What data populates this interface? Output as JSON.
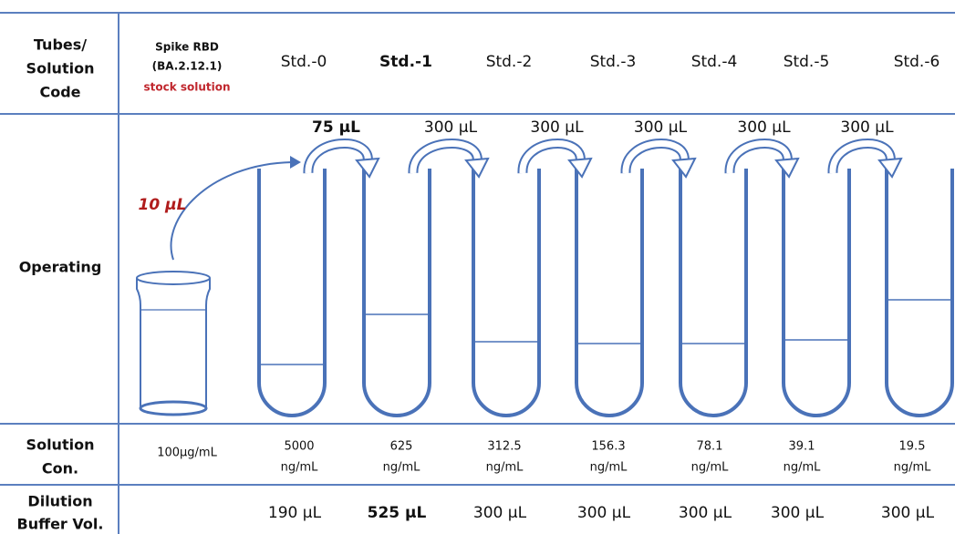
{
  "row_labels": {
    "code": [
      "Tubes/",
      "Solution",
      "Code"
    ],
    "operating": "Operating",
    "concentration": [
      "Solution",
      "Con."
    ],
    "buffer": [
      "Dilution",
      "Buffer Vol."
    ]
  },
  "stock": {
    "name": [
      "Spike RBD",
      "(BA.2.12.1)"
    ],
    "note": "stock solution",
    "volume": "10 μL",
    "concentration": "100μg/mL"
  },
  "tubes": [
    {
      "code": "Std.-0",
      "concentration": [
        "5000",
        "ng/mL"
      ],
      "buffer": "190 μL"
    },
    {
      "code": "Std.-1",
      "concentration": [
        "625",
        "ng/mL"
      ],
      "buffer": "525 μL"
    },
    {
      "code": "Std.-2",
      "concentration": [
        "312.5",
        "ng/mL"
      ],
      "buffer": "300 μL"
    },
    {
      "code": "Std.-3",
      "concentration": [
        "156.3",
        "ng/mL"
      ],
      "buffer": "300 μL"
    },
    {
      "code": "Std.-4",
      "concentration": [
        "78.1",
        "ng/mL"
      ],
      "buffer": "300 μL"
    },
    {
      "code": "Std.-5",
      "concentration": [
        "39.1",
        "ng/mL"
      ],
      "buffer": "300 μL"
    },
    {
      "code": "Std.-6",
      "concentration": [
        "19.5",
        "ng/mL"
      ],
      "buffer": "300 μL"
    }
  ],
  "transfers": [
    "75 μL",
    "300 μL",
    "300 μL",
    "300 μL",
    "300 μL",
    "300 μL"
  ]
}
